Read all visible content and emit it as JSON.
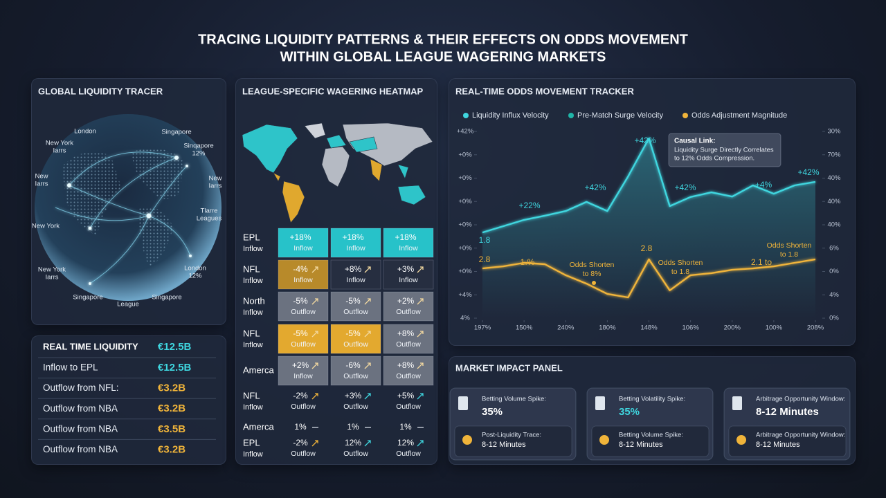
{
  "header": {
    "title_lines": [
      "TRACING LIQUIDITY PATTERNS & THEIR EFFECTS ON ODDS MOVEMENT",
      "WITHIN GLOBAL LEAGUE WAGERING MARKETS"
    ]
  },
  "globe": {
    "title": "GLOBAL LIQUIDITY TRACER",
    "labels": [
      [
        "London"
      ],
      [
        "Singapore"
      ],
      [
        "New York",
        "Iarrs"
      ],
      [
        "Sinqapore",
        "12%"
      ],
      [
        "New",
        "Iarrs"
      ],
      [
        "New",
        "Iarrs"
      ],
      [
        "New York"
      ],
      [
        "Tlarre",
        "Leagues"
      ],
      [
        "New York",
        "Iarrs"
      ],
      [
        "London",
        "12%"
      ],
      [
        "Singapore"
      ],
      [
        "League"
      ],
      [
        "Singapore"
      ]
    ]
  },
  "liquidity_table": {
    "title": "REAL TIME LIQUIDITY",
    "title_value": "€12.5B",
    "rows": [
      [
        "Inflow to EPL",
        "€12.5B"
      ],
      [
        "Outflow from NFL:",
        "€3.2B"
      ],
      [
        "Outflow from NBA",
        "€3.2B"
      ],
      [
        "Outflow from NBA",
        "€3.5B"
      ],
      [
        "Outflow from NBA",
        "€3.2B"
      ]
    ],
    "value_colors": [
      "#3fd6df",
      "#f0b43a",
      "#f0b43a",
      "#f0b43a",
      "#f0b43a"
    ]
  },
  "heatmap": {
    "title": "LEAGUE-SPECIFIC WAGERING HEATMAP",
    "rows": [
      {
        "label": [
          "EPL",
          "Inflow"
        ],
        "cells": [
          {
            "value": "+18%",
            "text": "Inflow",
            "style": "cyan",
            "trend": "none"
          },
          {
            "value": "+18%",
            "text": "Inflow",
            "style": "cyan",
            "trend": "none"
          },
          {
            "value": "+18%",
            "text": "Inflow",
            "style": "cyan",
            "trend": "none"
          }
        ]
      },
      {
        "label": [
          "NFL",
          "Inflow"
        ],
        "cells": [
          {
            "value": "-4%",
            "text": "Inflow",
            "style": "gold",
            "trend": "up-light"
          },
          {
            "value": "+8%",
            "text": "Inflow",
            "style": "dark",
            "trend": "up-light"
          },
          {
            "value": "+3%",
            "text": "Inflow",
            "style": "dark",
            "trend": "up-light"
          }
        ]
      },
      {
        "label": [
          "North",
          "Inflow"
        ],
        "cells": [
          {
            "value": "-5%",
            "text": "Outflow",
            "style": "gray",
            "trend": "up-light"
          },
          {
            "value": "-5%",
            "text": "Outflow",
            "style": "gray",
            "trend": "up-light"
          },
          {
            "value": "+2%",
            "text": "Outflow",
            "style": "gray",
            "trend": "up-light"
          }
        ]
      },
      {
        "label": [
          "NFL",
          "Inflow"
        ],
        "cells": [
          {
            "value": "-5%",
            "text": "Outflow",
            "style": "yellow",
            "trend": "up-light"
          },
          {
            "value": "-5%",
            "text": "Outflow",
            "style": "yellow",
            "trend": "up-light"
          },
          {
            "value": "+8%",
            "text": "Outflow",
            "style": "gray",
            "trend": "up-light"
          }
        ]
      },
      {
        "label": [
          "Amerca"
        ],
        "cells": [
          {
            "value": "+2%",
            "text": "Inflow",
            "style": "gray",
            "trend": "up-light"
          },
          {
            "value": "-6%",
            "text": "Outflow",
            "style": "gray",
            "trend": "up-light"
          },
          {
            "value": "+8%",
            "text": "Outflow",
            "style": "gray",
            "trend": "up-light"
          }
        ]
      },
      {
        "label": [
          "NFL",
          "Inflow"
        ],
        "cells": [
          {
            "value": "-2%",
            "text": "Outflow",
            "style": "none",
            "trend": "up-orange"
          },
          {
            "value": "+3%",
            "text": "Outflow",
            "style": "none",
            "trend": "up-cyan"
          },
          {
            "value": "+5%",
            "text": "Outflow",
            "style": "none",
            "trend": "up-cyan"
          }
        ]
      },
      {
        "label": [
          "Amerca"
        ],
        "cells": [
          {
            "value": "1%",
            "style": "none",
            "trend": "flat"
          },
          {
            "value": "1%",
            "style": "none",
            "trend": "flat"
          },
          {
            "value": "1%",
            "style": "none",
            "trend": "flat"
          }
        ]
      },
      {
        "label": [
          "EPL",
          "Inflow"
        ],
        "cells": [
          {
            "value": "-2%",
            "text": "Outflow",
            "style": "none",
            "trend": "up-orange"
          },
          {
            "value": "12%",
            "text": "Outflow",
            "style": "none",
            "trend": "up-cyan"
          },
          {
            "value": "12%",
            "text": "Outflow",
            "style": "none",
            "trend": "up-cyan"
          }
        ]
      }
    ]
  },
  "chart_data": {
    "type": "line",
    "title": "REAL-TIME ODDS MOVEMENT TRACKER",
    "x": [
      0,
      0.5,
      1,
      1.5,
      2,
      2.5,
      3,
      3.5,
      4,
      4.5,
      5,
      5.5,
      6,
      6.5,
      7,
      7.5,
      8
    ],
    "xlim": [
      0,
      8
    ],
    "xticks": [
      {
        "value": 0,
        "label": "197%"
      },
      {
        "value": 1,
        "label": "150%"
      },
      {
        "value": 2,
        "label": "240%"
      },
      {
        "value": 3,
        "label": "180%"
      },
      {
        "value": 4,
        "label": "148%"
      },
      {
        "value": 5,
        "label": "106%"
      },
      {
        "value": 6,
        "label": "200%"
      },
      {
        "value": 7,
        "label": "100%"
      },
      {
        "value": 8,
        "label": "208%"
      }
    ],
    "ylim": [
      0,
      8
    ],
    "yticks": [
      {
        "value": 0,
        "label": "4%"
      },
      {
        "value": 1,
        "label": "+4%"
      },
      {
        "value": 2,
        "label": "+0%"
      },
      {
        "value": 3,
        "label": "+0%"
      },
      {
        "value": 4,
        "label": "+0%"
      },
      {
        "value": 5,
        "label": "+0%"
      },
      {
        "value": 6,
        "label": "+0%"
      },
      {
        "value": 7,
        "label": "+0%"
      },
      {
        "value": 8,
        "label": "+42%"
      }
    ],
    "y2lim": [
      0,
      8
    ],
    "y2ticks": [
      {
        "value": 0,
        "label": "0%"
      },
      {
        "value": 1,
        "label": "4%"
      },
      {
        "value": 2,
        "label": "0%"
      },
      {
        "value": 3,
        "label": "6%"
      },
      {
        "value": 4,
        "label": "40%"
      },
      {
        "value": 5,
        "label": "40%"
      },
      {
        "value": 6,
        "label": "40%"
      },
      {
        "value": 7,
        "label": "70%"
      },
      {
        "value": 8,
        "label": "30%"
      }
    ],
    "series": [
      {
        "name": "Liquidity Influx Velocity",
        "color": "#3fd6df",
        "values": [
          3.67,
          3.94,
          4.21,
          4.39,
          4.59,
          4.98,
          4.59,
          6.07,
          7.7,
          4.8,
          5.19,
          5.39,
          5.21,
          5.69,
          5.33,
          5.69,
          5.84
        ]
      },
      {
        "name": "Pre-Match Surge Velocity",
        "color": "#1fb5a8",
        "values": [
          null,
          null,
          null,
          null,
          null,
          null,
          null,
          null,
          null,
          null,
          null,
          null,
          null,
          null,
          null,
          null,
          null
        ]
      },
      {
        "name": "Odds Adjustment Magnitude",
        "color": "#f0b43a",
        "axis": "y2",
        "values": [
          2.13,
          2.22,
          2.37,
          2.31,
          1.84,
          1.48,
          1.04,
          0.89,
          2.52,
          1.19,
          1.84,
          1.93,
          2.07,
          2.13,
          2.22,
          2.37,
          2.52
        ]
      }
    ],
    "annotations": [
      [
        "+22%"
      ],
      [
        "+42%"
      ],
      [
        "+42%"
      ],
      [
        "+42%"
      ],
      [
        "+4%"
      ],
      [
        "+42%"
      ],
      [
        "1.8"
      ],
      [
        "2.8"
      ],
      [
        "1.%"
      ],
      [
        "Odds Shorten",
        "to 8%"
      ],
      [
        "2.8"
      ],
      [
        "Odds Shorten",
        "to 1.8"
      ],
      [
        "2.1 to"
      ],
      [
        "Odds Shorten",
        "to 1.8"
      ]
    ],
    "callout": {
      "title": "Causal Link:",
      "lines": [
        "Liquidity Surge Directly Correlates",
        "to 12% Odds Compression."
      ]
    }
  },
  "impact": {
    "title": "MARKET IMPACT PANEL",
    "cards": [
      {
        "top": {
          "label": "Betting Volume Spike:",
          "value": "35%",
          "color": "#ffffff"
        },
        "bottom": {
          "label": "Post-Liquidity Trace:",
          "value": "8-12 Minutes"
        }
      },
      {
        "top": {
          "label": "Betting Volatility Spike:",
          "value": "35%",
          "color": "#3fd6df"
        },
        "bottom": {
          "label": "Betting Volume Spike:",
          "value": "8-12 Minutes"
        }
      },
      {
        "top": {
          "label": "Arbitrage Opportunity Window:",
          "value": "8-12 Minutes",
          "color": "#ffffff"
        },
        "bottom": {
          "label": "Arbitrage Opportunity Window:",
          "value": "8-12 Minutes"
        }
      }
    ]
  }
}
